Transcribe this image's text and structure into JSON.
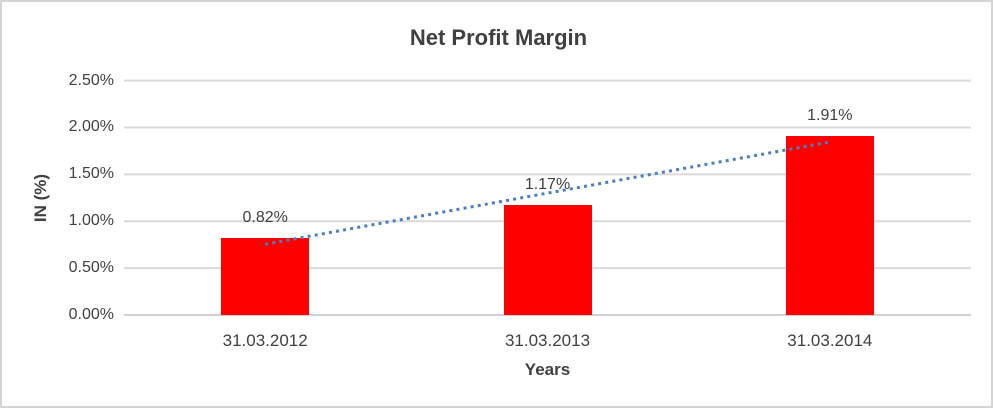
{
  "frame": {
    "background_color": "#ffffff",
    "border_color": "#d4d4d4"
  },
  "chart_data": {
    "type": "bar",
    "title": "Net Profit Margin",
    "xlabel": "Years",
    "ylabel": "IN (%)",
    "categories": [
      "31.03.2012",
      "31.03.2013",
      "31.03.2014"
    ],
    "values": [
      0.82,
      1.17,
      1.91
    ],
    "data_labels": [
      "0.82%",
      "1.17%",
      "1.91%"
    ],
    "ylim": [
      0,
      2.5
    ],
    "ytick_step": 0.5,
    "ytick_labels": [
      "0.00%",
      "0.50%",
      "1.00%",
      "1.50%",
      "2.00%",
      "2.50%"
    ],
    "grid": true,
    "legend": "none",
    "bar_color": "#ff0000",
    "gridline_color": "#dadada",
    "axisline_color": "#d0d0d0",
    "text_color": "#404040",
    "trendline": {
      "type": "linear",
      "style": "dotted",
      "color": "#4a7fc1",
      "fit_values": [
        0.755,
        1.3,
        1.845
      ]
    }
  }
}
